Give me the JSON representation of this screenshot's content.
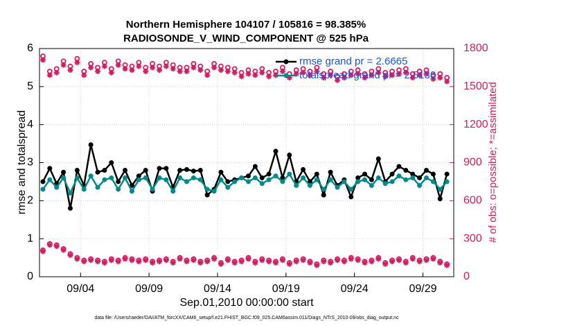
{
  "chart_data": {
    "type": "line",
    "title": "Northern Hemisphere 104107 / 105816 = 98.385%",
    "subtitle": "RADIOSONDE_V_WIND_COMPONENT @ 525 hPa",
    "xlabel": "Sep.01,2010 00:00:00 start",
    "ylabel": "rmse and totalspread",
    "y2label": "# of obs: o=possible; *=assimilated",
    "footnote": "data file: /Users/raeder/DAI/ATM_forcXX/CAM6_setup/f.e21.FHIST_BGC.f09_025.CAM6assim.011/Diags_NTrS_2010-09/obs_diag_output.nc",
    "xlim": [
      0,
      30.25
    ],
    "xticks": [
      {
        "value": 3,
        "label": "09/04"
      },
      {
        "value": 8,
        "label": "09/09"
      },
      {
        "value": 13,
        "label": "09/14"
      },
      {
        "value": 18,
        "label": "09/19"
      },
      {
        "value": 23,
        "label": "09/24"
      },
      {
        "value": 28,
        "label": "09/29"
      }
    ],
    "ylim": [
      0,
      6
    ],
    "yticks": [
      0,
      1,
      2,
      3,
      4,
      5,
      6
    ],
    "y2lim": [
      0,
      1800
    ],
    "y2ticks": [
      0,
      300,
      600,
      900,
      1200,
      1500,
      1800
    ],
    "grid": true,
    "legend_position": "upper right",
    "legend_text_color": "#1a55e0",
    "x": [
      0.25,
      0.75,
      1.25,
      1.75,
      2.25,
      2.75,
      3.25,
      3.75,
      4.25,
      4.75,
      5.25,
      5.75,
      6.25,
      6.75,
      7.25,
      7.75,
      8.25,
      8.75,
      9.25,
      9.75,
      10.25,
      10.75,
      11.25,
      11.75,
      12.25,
      12.75,
      13.25,
      13.75,
      14.25,
      14.75,
      15.25,
      15.75,
      16.25,
      16.75,
      17.25,
      17.75,
      18.25,
      18.75,
      19.25,
      19.75,
      20.25,
      20.75,
      21.25,
      21.75,
      22.25,
      22.75,
      23.25,
      23.75,
      24.25,
      24.75,
      25.25,
      25.75,
      26.25,
      26.75,
      27.25,
      27.75,
      28.25,
      28.75,
      29.25,
      29.75
    ],
    "series": [
      {
        "name": "rmse grand pr = 2.6665",
        "color": "#000000",
        "marker": "dot",
        "values": [
          2.5,
          2.85,
          2.45,
          2.75,
          1.8,
          2.8,
          2.4,
          3.47,
          2.75,
          2.8,
          3.0,
          2.5,
          2.8,
          2.4,
          2.65,
          2.8,
          2.25,
          2.85,
          2.85,
          2.35,
          2.8,
          2.82,
          2.78,
          2.8,
          2.15,
          2.3,
          2.75,
          2.5,
          2.55,
          2.6,
          2.65,
          2.9,
          2.6,
          2.7,
          3.3,
          2.6,
          3.2,
          2.5,
          2.82,
          2.5,
          2.7,
          2.15,
          2.75,
          2.4,
          2.55,
          2.1,
          2.6,
          2.7,
          2.55,
          3.1,
          2.5,
          2.7,
          2.9,
          2.8,
          2.7,
          2.6,
          2.8,
          2.7,
          2.05,
          2.7
        ]
      },
      {
        "name": "totalspread grand pr = 2.5138",
        "color": "#008b8b",
        "marker": "dot",
        "values": [
          2.3,
          2.55,
          2.35,
          2.6,
          2.2,
          2.6,
          2.3,
          2.65,
          2.35,
          2.55,
          2.6,
          2.3,
          2.6,
          2.25,
          2.55,
          2.6,
          2.3,
          2.6,
          2.55,
          2.25,
          2.6,
          2.5,
          2.6,
          2.55,
          2.3,
          2.25,
          2.55,
          2.35,
          2.5,
          2.6,
          2.5,
          2.6,
          2.45,
          2.55,
          2.65,
          2.5,
          2.7,
          2.4,
          2.6,
          2.4,
          2.55,
          2.3,
          2.55,
          2.35,
          2.5,
          2.3,
          2.5,
          2.55,
          2.4,
          2.6,
          2.45,
          2.5,
          2.65,
          2.55,
          2.6,
          2.4,
          2.6,
          2.5,
          2.3,
          2.5
        ]
      },
      {
        "color": "#d81b60",
        "marker": "circle",
        "axis": "y2",
        "values": [
          1740,
          1620,
          1640,
          1700,
          1660,
          1720,
          1620,
          1680,
          1650,
          1690,
          1640,
          1700,
          1670,
          1660,
          1690,
          1650,
          1680,
          1660,
          1690,
          1670,
          1650,
          1650,
          1680,
          1660,
          1620,
          1680,
          1660,
          1650,
          1640,
          1610,
          1630,
          1620,
          1640,
          1610,
          1620,
          1650,
          1600,
          1630,
          1640,
          1620,
          1650,
          1600,
          1620,
          1580,
          1600,
          1620,
          1630,
          1600,
          1620,
          1640,
          1610,
          1620,
          1630,
          1640,
          1600,
          1620,
          1630,
          1590,
          1600,
          1570
        ]
      },
      {
        "color": "#d81b60",
        "marker": "asterisk",
        "axis": "y2",
        "values": [
          1710,
          1590,
          1610,
          1670,
          1630,
          1690,
          1590,
          1650,
          1620,
          1660,
          1610,
          1670,
          1640,
          1630,
          1660,
          1620,
          1650,
          1630,
          1660,
          1640,
          1620,
          1620,
          1650,
          1630,
          1590,
          1650,
          1630,
          1620,
          1610,
          1580,
          1600,
          1590,
          1610,
          1580,
          1590,
          1620,
          1570,
          1600,
          1610,
          1590,
          1620,
          1570,
          1590,
          1550,
          1570,
          1590,
          1600,
          1570,
          1590,
          1610,
          1580,
          1590,
          1600,
          1610,
          1570,
          1590,
          1600,
          1560,
          1570,
          1540
        ]
      },
      {
        "color": "#d81b60",
        "marker": "circle",
        "axis": "y2",
        "values": [
          210,
          260,
          250,
          220,
          180,
          150,
          130,
          140,
          130,
          120,
          140,
          130,
          150,
          140,
          130,
          140,
          120,
          130,
          140,
          120,
          150,
          130,
          140,
          120,
          130,
          150,
          110,
          140,
          120,
          130,
          150,
          120,
          140,
          130,
          120,
          140,
          110,
          130,
          140,
          120,
          100,
          130,
          120,
          140,
          130,
          150,
          140,
          120,
          130,
          150,
          110,
          130,
          140,
          120,
          150,
          130,
          140,
          150,
          120,
          100
        ]
      },
      {
        "color": "#d81b60",
        "marker": "asterisk",
        "axis": "y2",
        "values": [
          200,
          250,
          240,
          210,
          170,
          140,
          120,
          130,
          120,
          110,
          130,
          120,
          140,
          130,
          120,
          130,
          110,
          120,
          130,
          110,
          140,
          120,
          130,
          110,
          120,
          140,
          100,
          130,
          110,
          120,
          140,
          110,
          130,
          120,
          110,
          130,
          100,
          120,
          130,
          110,
          90,
          120,
          110,
          130,
          120,
          140,
          130,
          110,
          120,
          140,
          100,
          120,
          130,
          110,
          140,
          120,
          130,
          140,
          110,
          90
        ]
      }
    ]
  }
}
